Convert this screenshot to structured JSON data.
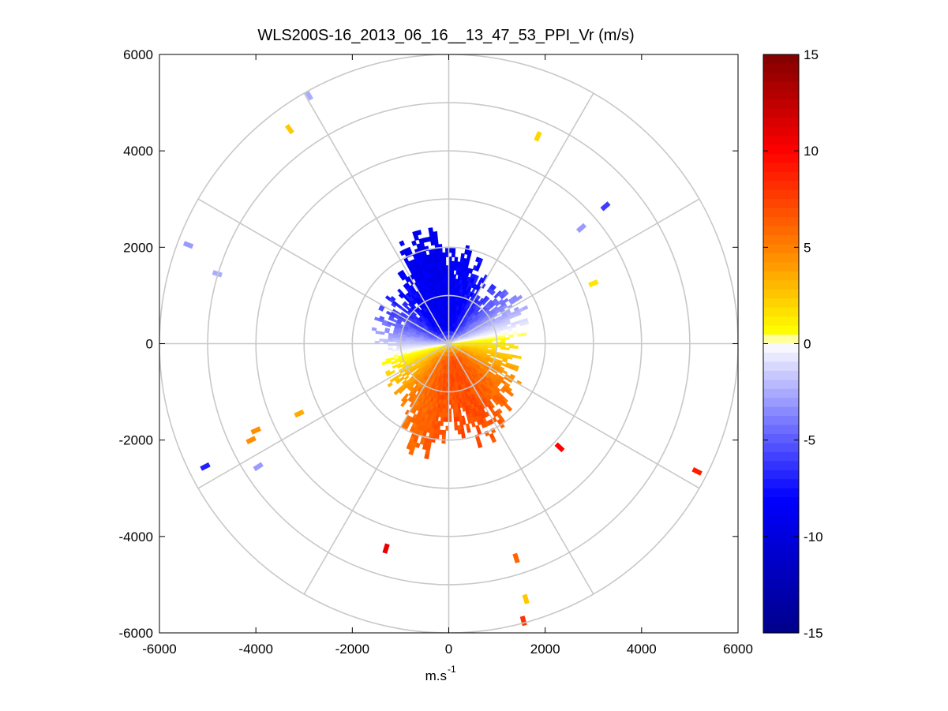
{
  "chart_data": {
    "type": "heatmap",
    "subtype": "polar-ppi-scan",
    "title": "WLS200S-16_2013_06_16__13_47_53_PPI_Vr (m/s)",
    "xlabel": "m.s",
    "xlabel_superscript": "-1",
    "ylabel": "",
    "xlim": [
      -6000,
      6000
    ],
    "ylim": [
      -6000,
      6000
    ],
    "xticks": [
      "-6000",
      "-4000",
      "-2000",
      "0",
      "2000",
      "4000",
      "6000"
    ],
    "yticks": [
      "6000",
      "4000",
      "2000",
      "0",
      "-2000",
      "-4000",
      "-6000"
    ],
    "grid": true,
    "polar_grid": {
      "range_rings": [
        1000,
        2000,
        3000,
        4000,
        5000,
        6000
      ],
      "spoke_angles_deg": [
        0,
        30,
        60,
        90,
        120,
        150,
        180,
        210,
        240,
        270,
        300,
        330
      ]
    },
    "colorbar": {
      "label": "",
      "min": -15,
      "max": 15,
      "ticks": [
        "15",
        "10",
        "5",
        "0",
        "-5",
        "-10",
        "-15"
      ],
      "colormap": "blue-white-yellow-red",
      "stops": [
        {
          "value": -15,
          "color": "#00008a"
        },
        {
          "value": -8,
          "color": "#0000ff"
        },
        {
          "value": -4,
          "color": "#7a7aff"
        },
        {
          "value": 0,
          "color": "#ffffff"
        },
        {
          "value": 0.6,
          "color": "#ffff00"
        },
        {
          "value": 5,
          "color": "#ff8000"
        },
        {
          "value": 10,
          "color": "#ff0000"
        },
        {
          "value": 15,
          "color": "#800000"
        }
      ]
    },
    "velocity_field": {
      "description": "radial wind velocity; negative toward the north-west, positive toward the south-east",
      "peak_negative_ms": -9,
      "peak_negative_direction_deg": 350,
      "peak_positive_ms": 7,
      "peak_positive_direction_deg": 170,
      "core_range_m": [
        500,
        2000
      ]
    },
    "isolated_returns": [
      {
        "x": -2900,
        "y": 5150,
        "v": -2.5
      },
      {
        "x": -3300,
        "y": 4450,
        "v": 2.5
      },
      {
        "x": 1850,
        "y": 4300,
        "v": 2
      },
      {
        "x": -5400,
        "y": 2050,
        "v": -3
      },
      {
        "x": -4800,
        "y": 1450,
        "v": -2.5
      },
      {
        "x": 3250,
        "y": 2850,
        "v": -6
      },
      {
        "x": 2750,
        "y": 2400,
        "v": -3
      },
      {
        "x": 3000,
        "y": 1250,
        "v": 1.5
      },
      {
        "x": -3100,
        "y": -1450,
        "v": 3.5
      },
      {
        "x": -4000,
        "y": -1800,
        "v": 4.5
      },
      {
        "x": -4100,
        "y": -2000,
        "v": 4.5
      },
      {
        "x": -5050,
        "y": -2550,
        "v": -7
      },
      {
        "x": -3950,
        "y": -2550,
        "v": -3
      },
      {
        "x": 2300,
        "y": -2150,
        "v": 10
      },
      {
        "x": 5150,
        "y": -2650,
        "v": 9
      },
      {
        "x": -1300,
        "y": -4250,
        "v": 11
      },
      {
        "x": 1400,
        "y": -4450,
        "v": 6
      },
      {
        "x": 1600,
        "y": -5300,
        "v": 2.5
      },
      {
        "x": 1550,
        "y": -5750,
        "v": 8
      }
    ]
  }
}
